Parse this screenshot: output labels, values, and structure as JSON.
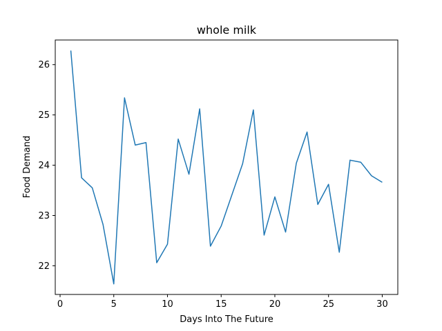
{
  "chart_data": {
    "type": "line",
    "title": "whole milk",
    "xlabel": "Days Into The Future",
    "ylabel": "Food Demand",
    "xlim": [
      -0.45,
      31.45
    ],
    "ylim": [
      21.43,
      26.49
    ],
    "xticks": [
      0,
      5,
      10,
      15,
      20,
      25,
      30
    ],
    "yticks": [
      22,
      23,
      24,
      25,
      26
    ],
    "grid": false,
    "series": [
      {
        "color": "#1f77b4",
        "x": [
          1,
          2,
          3,
          4,
          5,
          6,
          7,
          8,
          9,
          10,
          11,
          12,
          13,
          14,
          15,
          16,
          17,
          18,
          19,
          20,
          21,
          22,
          23,
          24,
          25,
          26,
          27,
          28,
          29,
          30
        ],
        "y": [
          26.28,
          23.75,
          23.55,
          22.82,
          21.64,
          25.34,
          24.4,
          24.45,
          22.06,
          22.43,
          24.52,
          23.82,
          25.12,
          22.39,
          22.79,
          23.41,
          24.03,
          25.1,
          22.61,
          23.37,
          22.67,
          24.04,
          24.66,
          23.22,
          23.62,
          22.27,
          24.1,
          24.06,
          23.79,
          23.66
        ]
      }
    ]
  }
}
